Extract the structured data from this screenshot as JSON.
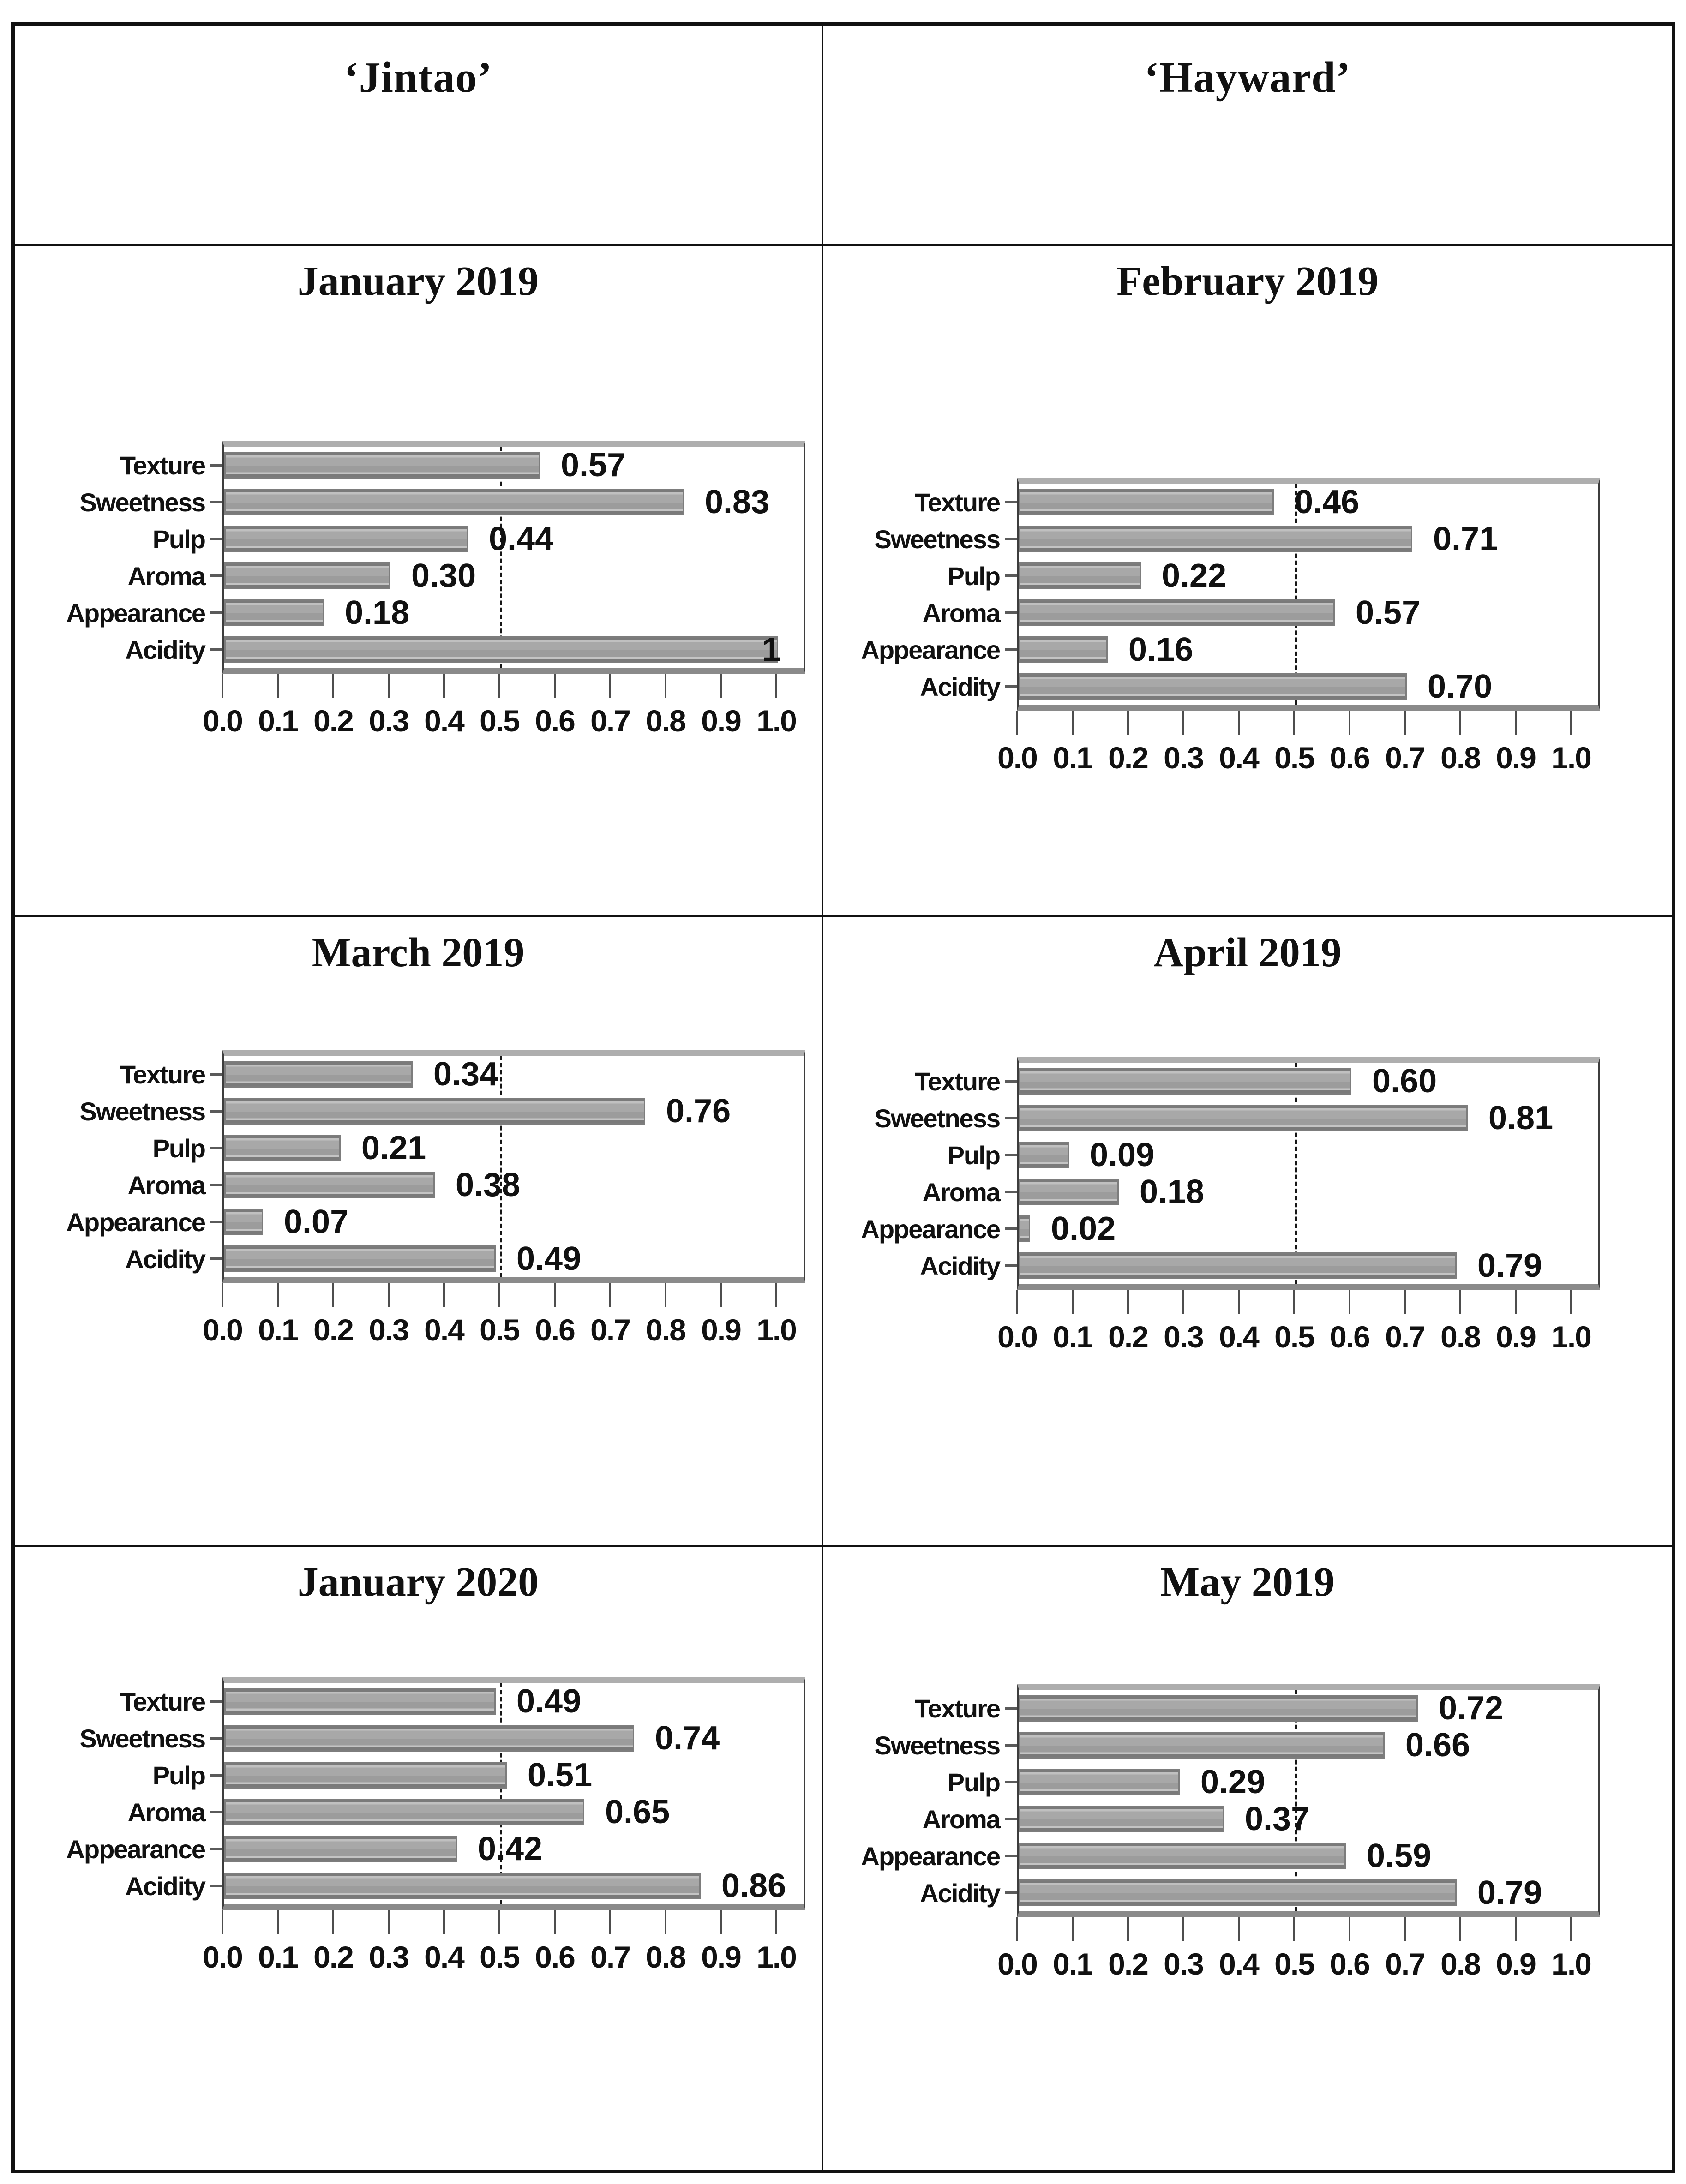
{
  "figure": {
    "description": "Sensory preference bar charts for two kiwifruit cultivars by month"
  },
  "columns": [
    {
      "label": "‘Jintao’"
    },
    {
      "label": "‘Hayward’"
    }
  ],
  "categories": [
    "Texture",
    "Sweetness",
    "Pulp",
    "Aroma",
    "Appearance",
    "Acidity"
  ],
  "axis": {
    "min": 0.0,
    "max": 1.0,
    "tick_labels": [
      "0.0",
      "0.1",
      "0.2",
      "0.3",
      "0.4",
      "0.5",
      "0.6",
      "0.7",
      "0.8",
      "0.9",
      "1.0"
    ],
    "reference_line": 0.5,
    "reference_line_style": "dashed"
  },
  "colors": {
    "bar_fill": "#a6a6a6",
    "bar_edge": "#7d7d7d",
    "reference_line": "#161616",
    "grid_lines": "#111111"
  },
  "chart_data": [
    {
      "type": "bar",
      "title": "January 2019",
      "variety": "Jintao",
      "categories": [
        "Texture",
        "Sweetness",
        "Pulp",
        "Aroma",
        "Appearance",
        "Acidity"
      ],
      "values": [
        0.57,
        0.83,
        0.44,
        0.3,
        0.18,
        1.0
      ],
      "labels": [
        "0.57",
        "0.83",
        "0.44",
        "0.30",
        "0.18",
        "1"
      ],
      "xlim": [
        0,
        1
      ],
      "legend": false,
      "grid": false
    },
    {
      "type": "bar",
      "title": "February 2019",
      "variety": "Hayward",
      "categories": [
        "Texture",
        "Sweetness",
        "Pulp",
        "Aroma",
        "Appearance",
        "Acidity"
      ],
      "values": [
        0.46,
        0.71,
        0.22,
        0.57,
        0.16,
        0.7
      ],
      "labels": [
        "0.46",
        "0.71",
        "0.22",
        "0.57",
        "0.16",
        "0.70"
      ],
      "xlim": [
        0,
        1
      ],
      "legend": false,
      "grid": false
    },
    {
      "type": "bar",
      "title": "March 2019",
      "variety": "Jintao",
      "categories": [
        "Texture",
        "Sweetness",
        "Pulp",
        "Aroma",
        "Appearance",
        "Acidity"
      ],
      "values": [
        0.34,
        0.76,
        0.21,
        0.38,
        0.07,
        0.49
      ],
      "labels": [
        "0.34",
        "0.76",
        "0.21",
        "0.38",
        "0.07",
        "0.49"
      ],
      "xlim": [
        0,
        1
      ],
      "legend": false,
      "grid": false
    },
    {
      "type": "bar",
      "title": "April 2019",
      "variety": "Hayward",
      "categories": [
        "Texture",
        "Sweetness",
        "Pulp",
        "Aroma",
        "Appearance",
        "Acidity"
      ],
      "values": [
        0.6,
        0.81,
        0.09,
        0.18,
        0.02,
        0.79
      ],
      "labels": [
        "0.60",
        "0.81",
        "0.09",
        "0.18",
        "0.02",
        "0.79"
      ],
      "xlim": [
        0,
        1
      ],
      "legend": false,
      "grid": false
    },
    {
      "type": "bar",
      "title": "January 2020",
      "variety": "Jintao",
      "categories": [
        "Texture",
        "Sweetness",
        "Pulp",
        "Aroma",
        "Appearance",
        "Acidity"
      ],
      "values": [
        0.49,
        0.74,
        0.51,
        0.65,
        0.42,
        0.86
      ],
      "labels": [
        "0.49",
        "0.74",
        "0.51",
        "0.65",
        "0.42",
        "0.86"
      ],
      "xlim": [
        0,
        1
      ],
      "legend": false,
      "grid": false
    },
    {
      "type": "bar",
      "title": "May 2019",
      "variety": "Hayward",
      "categories": [
        "Texture",
        "Sweetness",
        "Pulp",
        "Aroma",
        "Appearance",
        "Acidity"
      ],
      "values": [
        0.72,
        0.66,
        0.29,
        0.37,
        0.59,
        0.79
      ],
      "labels": [
        "0.72",
        "0.66",
        "0.29",
        "0.37",
        "0.59",
        "0.79"
      ],
      "xlim": [
        0,
        1
      ],
      "legend": false,
      "grid": false
    }
  ]
}
